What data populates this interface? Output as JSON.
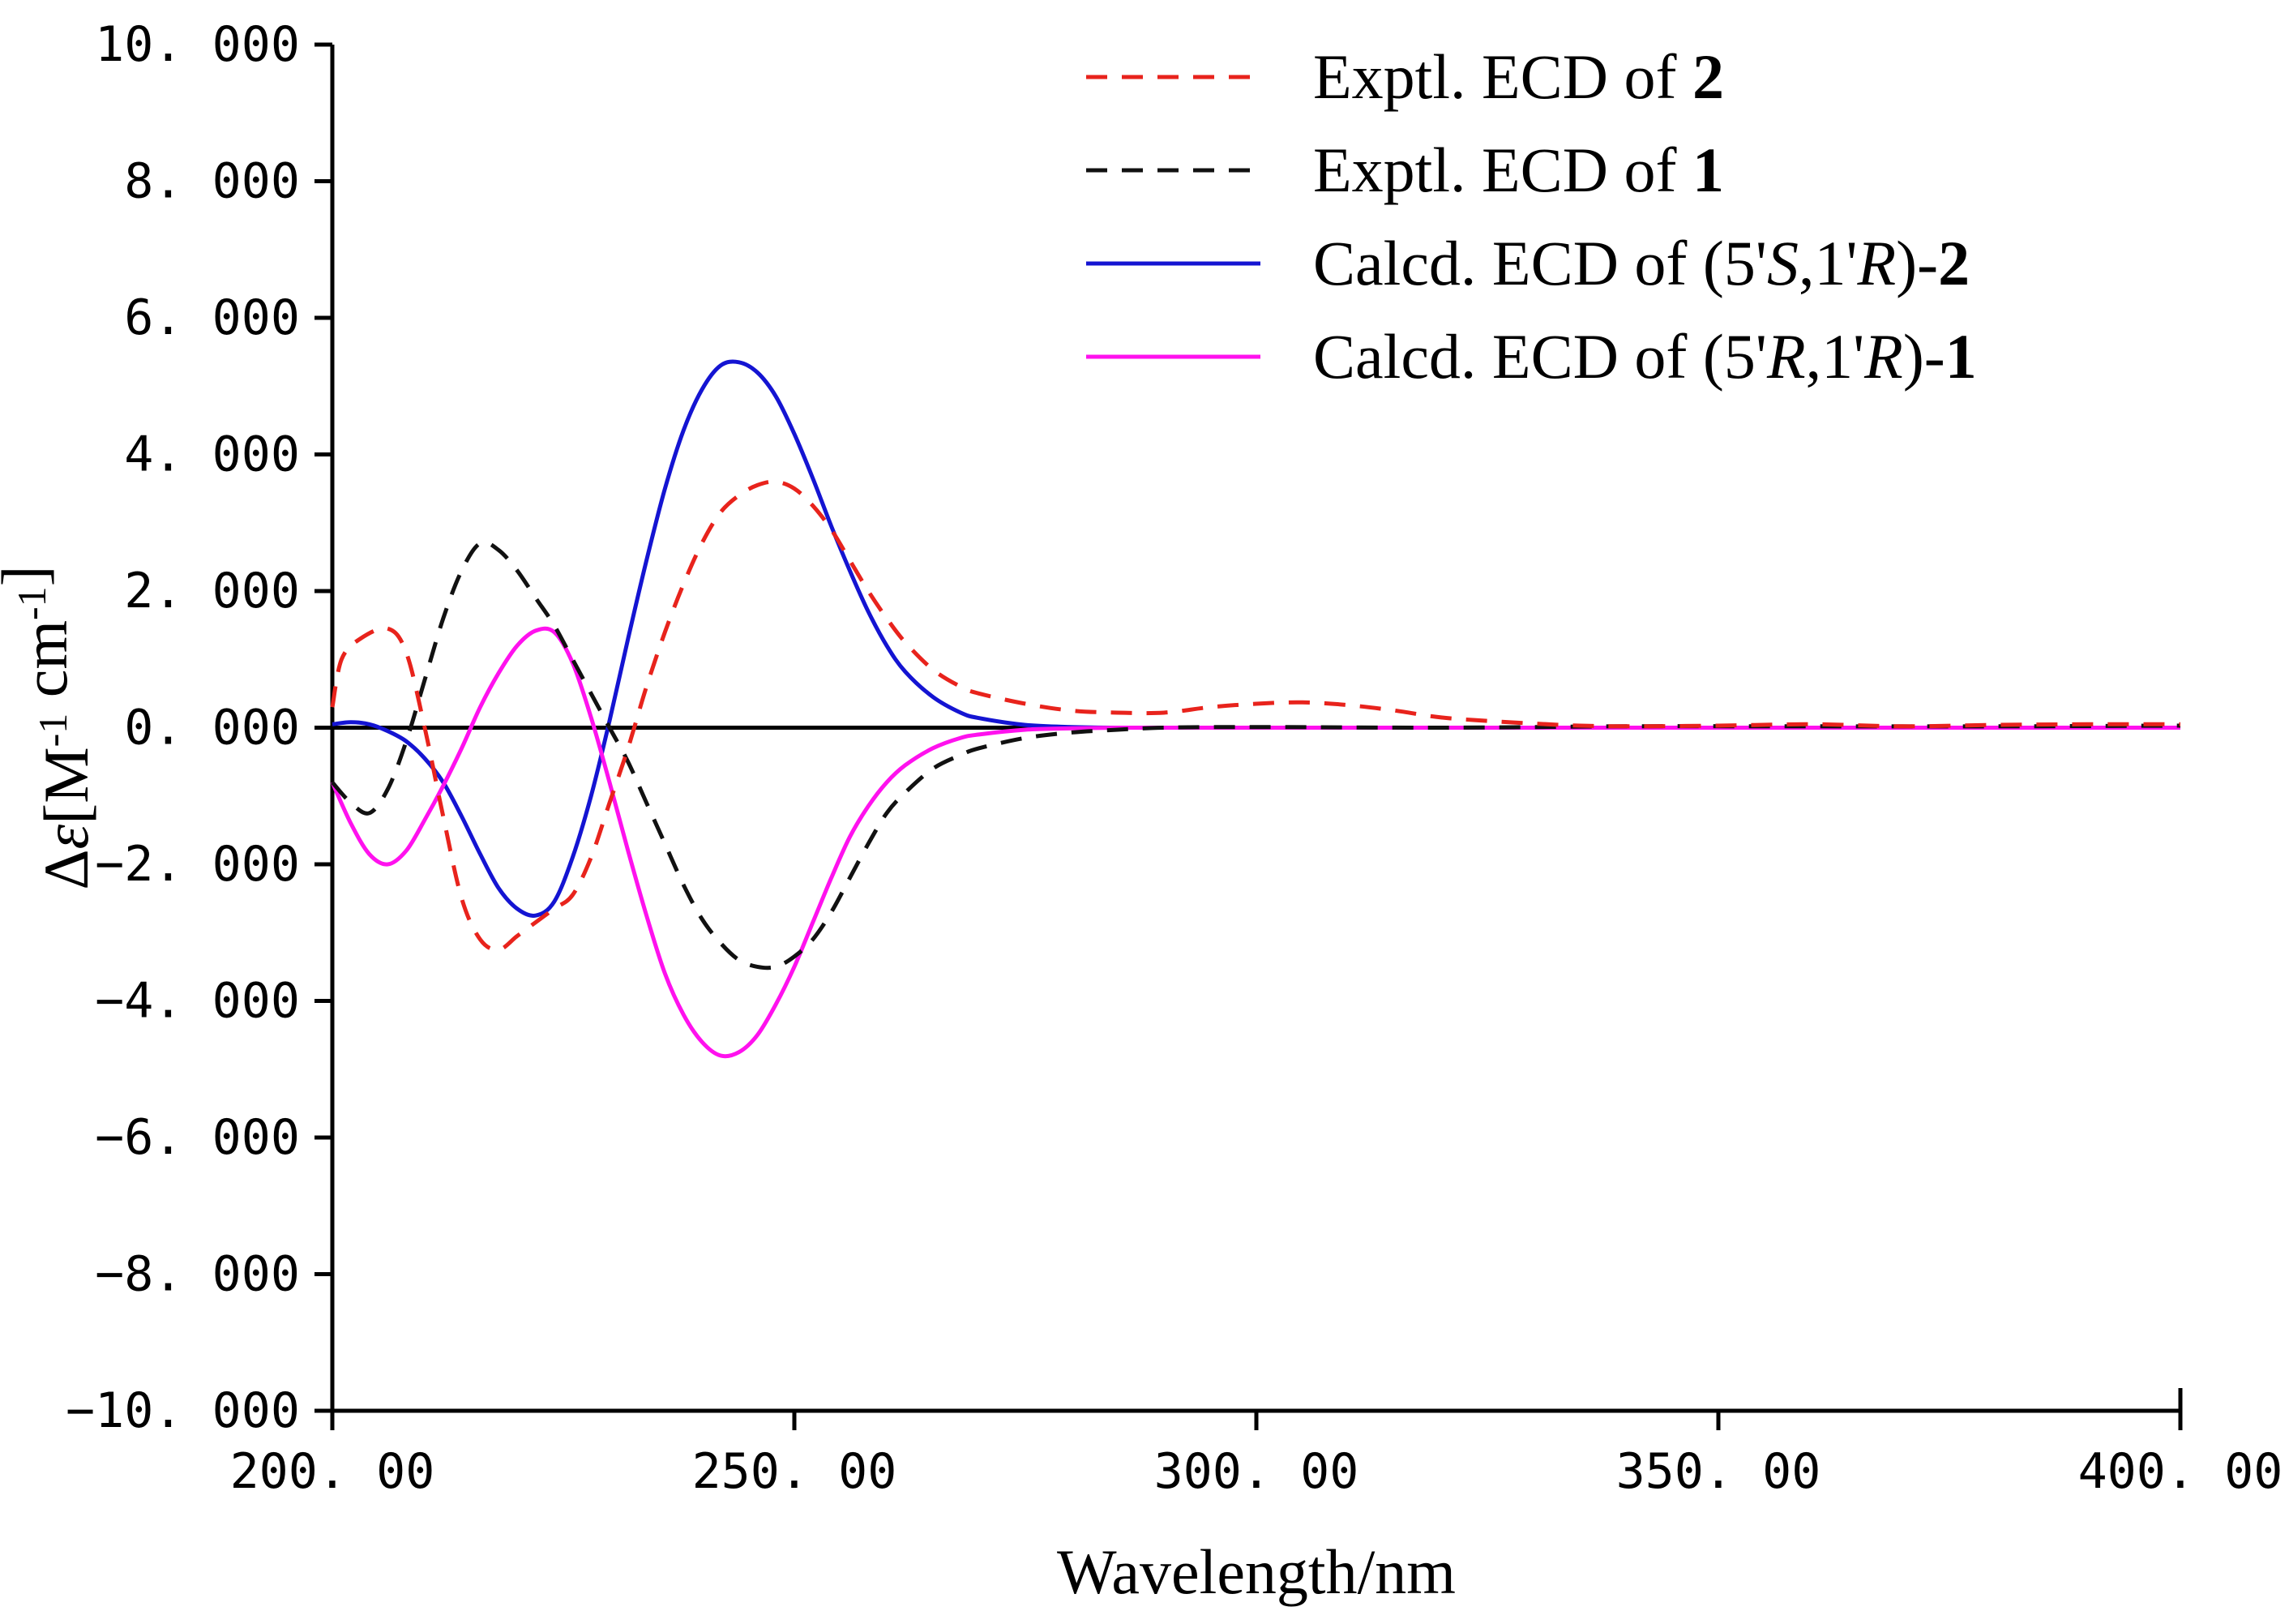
{
  "chart_data": {
    "type": "line",
    "title": "",
    "xlabel": "Wavelength/nm",
    "ylabel": {
      "prefix": "Δ",
      "epsilon": "ε",
      "open": "[M",
      "sup1": "-1",
      "cm": " cm",
      "sup2": "-1",
      "close": "]"
    },
    "xlim": [
      200,
      400
    ],
    "ylim": [
      -10,
      10
    ],
    "x_ticks": [
      200,
      250,
      300,
      350,
      400
    ],
    "x_tick_labels": [
      "200. 00",
      "250. 00",
      "300. 00",
      "350. 00",
      "400. 00"
    ],
    "y_ticks": [
      10,
      8,
      6,
      4,
      2,
      0,
      -2,
      -4,
      -6,
      -8,
      -10
    ],
    "y_tick_labels": [
      "10. 000",
      "8. 000",
      "6. 000",
      "4. 000",
      "2. 000",
      "0. 000",
      "−2. 000",
      "−4. 000",
      "−6. 000",
      "−8. 000",
      "−10. 000"
    ],
    "zero_line": true,
    "grid": false,
    "legend_position": "top-right",
    "series": [
      {
        "name": "Exptl. ECD of 2",
        "legend": [
          {
            "t": "Exptl. ECD of ",
            "s": "normal"
          },
          {
            "t": "2",
            "s": "bold"
          }
        ],
        "color": "#e8231c",
        "style": "dashed",
        "x": [
          200,
          201,
          203,
          206,
          208,
          210,
          212,
          214,
          216,
          218,
          220,
          222,
          224,
          226,
          228,
          230,
          232,
          234,
          236,
          238,
          240,
          242,
          244,
          246,
          248,
          250,
          252,
          254,
          256,
          258,
          260,
          262,
          265,
          268,
          270,
          275,
          280,
          285,
          290,
          295,
          300,
          305,
          310,
          315,
          320,
          325,
          330,
          335,
          340,
          350,
          360,
          370,
          380,
          390,
          400
        ],
        "y": [
          0.3,
          1.0,
          1.3,
          1.45,
          1.1,
          0.0,
          -1.3,
          -2.5,
          -3.1,
          -3.25,
          -3.05,
          -2.85,
          -2.65,
          -2.45,
          -1.9,
          -1.1,
          -0.3,
          0.6,
          1.4,
          2.1,
          2.7,
          3.15,
          3.4,
          3.55,
          3.6,
          3.5,
          3.25,
          2.9,
          2.45,
          2.0,
          1.6,
          1.25,
          0.85,
          0.6,
          0.5,
          0.35,
          0.25,
          0.22,
          0.22,
          0.3,
          0.35,
          0.37,
          0.33,
          0.25,
          0.15,
          0.1,
          0.06,
          0.03,
          0.02,
          0.03,
          0.05,
          0.02,
          0.04,
          0.05,
          0.05
        ]
      },
      {
        "name": "Exptl. ECD of 1",
        "legend": [
          {
            "t": "Exptl. ECD of ",
            "s": "normal"
          },
          {
            "t": "1",
            "s": "bold"
          }
        ],
        "color": "#111111",
        "style": "dashed",
        "x": [
          200,
          202,
          204,
          206,
          208,
          210,
          212,
          214,
          216,
          218,
          220,
          222,
          224,
          226,
          228,
          230,
          232,
          234,
          236,
          238,
          240,
          242,
          244,
          246,
          248,
          250,
          252,
          254,
          256,
          258,
          260,
          262,
          265,
          268,
          270,
          275,
          280,
          285,
          290,
          300,
          320,
          340,
          360,
          380,
          400
        ],
        "y": [
          -0.8,
          -1.1,
          -1.25,
          -0.9,
          -0.2,
          0.7,
          1.6,
          2.3,
          2.7,
          2.6,
          2.3,
          1.9,
          1.5,
          1.0,
          0.5,
          0.0,
          -0.5,
          -1.1,
          -1.7,
          -2.3,
          -2.8,
          -3.15,
          -3.4,
          -3.5,
          -3.5,
          -3.35,
          -3.1,
          -2.7,
          -2.2,
          -1.7,
          -1.25,
          -0.95,
          -0.6,
          -0.4,
          -0.3,
          -0.15,
          -0.07,
          -0.03,
          0.0,
          0.01,
          0.0,
          0.02,
          0.02,
          0.02,
          0.03
        ]
      },
      {
        "name": "Calcd. ECD of (5'S,1'R)-2",
        "legend": [
          {
            "t": "Calcd. ECD of (5'",
            "s": "normal"
          },
          {
            "t": "S",
            "s": "italic"
          },
          {
            "t": ",1'",
            "s": "normal"
          },
          {
            "t": "R",
            "s": "italic"
          },
          {
            "t": ")-",
            "s": "normal"
          },
          {
            "t": "2",
            "s": "bold"
          }
        ],
        "color": "#1414d2",
        "style": "solid",
        "x": [
          200,
          202,
          204,
          206,
          208,
          210,
          212,
          214,
          216,
          218,
          220,
          222,
          224,
          226,
          228,
          230,
          232,
          234,
          236,
          238,
          240,
          242,
          244,
          246,
          248,
          250,
          252,
          254,
          256,
          258,
          260,
          262,
          265,
          268,
          270,
          275,
          280,
          285,
          290,
          300,
          320,
          350,
          400
        ],
        "y": [
          0.05,
          0.08,
          0.05,
          -0.05,
          -0.2,
          -0.45,
          -0.8,
          -1.3,
          -1.85,
          -2.35,
          -2.65,
          -2.75,
          -2.55,
          -1.9,
          -1.0,
          0.1,
          1.3,
          2.45,
          3.5,
          4.35,
          4.95,
          5.3,
          5.35,
          5.2,
          4.85,
          4.3,
          3.65,
          2.95,
          2.3,
          1.7,
          1.2,
          0.82,
          0.45,
          0.22,
          0.14,
          0.04,
          0.01,
          0.0,
          0.0,
          0.0,
          0.0,
          0.0,
          0.0
        ]
      },
      {
        "name": "Calcd. ECD of (5'R,1'R)-1",
        "legend": [
          {
            "t": "Calcd. ECD of (5'",
            "s": "normal"
          },
          {
            "t": "R",
            "s": "italic"
          },
          {
            "t": ",1'",
            "s": "normal"
          },
          {
            "t": "R",
            "s": "italic"
          },
          {
            "t": ")-",
            "s": "normal"
          },
          {
            "t": "1",
            "s": "bold"
          }
        ],
        "color": "#ff11ee",
        "style": "solid",
        "x": [
          200,
          202,
          204,
          206,
          208,
          210,
          212,
          214,
          216,
          218,
          220,
          222,
          224,
          226,
          228,
          230,
          232,
          234,
          236,
          238,
          240,
          242,
          244,
          246,
          248,
          250,
          252,
          254,
          256,
          258,
          260,
          262,
          265,
          268,
          270,
          275,
          280,
          285,
          290,
          300,
          320,
          350,
          400
        ],
        "y": [
          -0.8,
          -1.4,
          -1.85,
          -2.0,
          -1.8,
          -1.35,
          -0.85,
          -0.3,
          0.3,
          0.8,
          1.2,
          1.42,
          1.4,
          0.95,
          0.15,
          -0.8,
          -1.8,
          -2.75,
          -3.6,
          -4.2,
          -4.6,
          -4.8,
          -4.75,
          -4.5,
          -4.05,
          -3.5,
          -2.85,
          -2.2,
          -1.6,
          -1.15,
          -0.8,
          -0.55,
          -0.3,
          -0.15,
          -0.1,
          -0.03,
          -0.01,
          0.0,
          0.0,
          0.0,
          0.0,
          0.0,
          0.0
        ]
      }
    ]
  }
}
